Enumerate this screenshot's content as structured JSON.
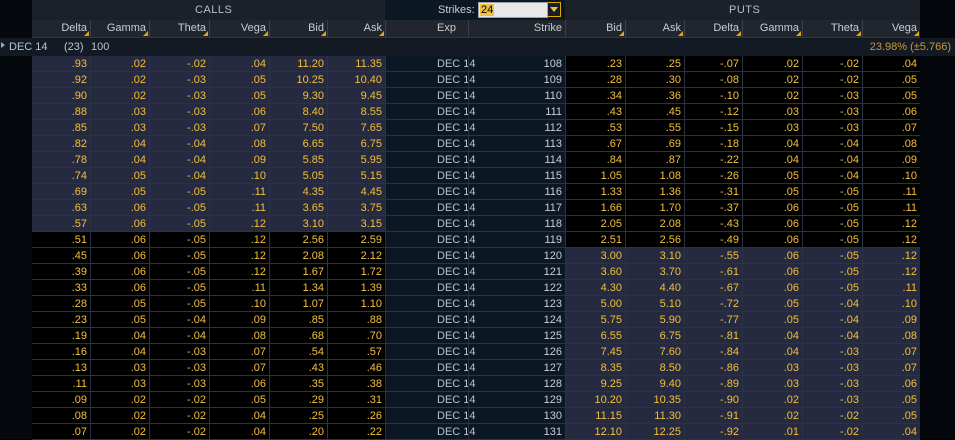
{
  "header": {
    "calls_label": "CALLS",
    "puts_label": "PUTS",
    "strikes_label": "Strikes:",
    "strikes_value": "24"
  },
  "columns": {
    "calls": [
      "Delta",
      "Gamma",
      "Theta",
      "Vega",
      "Bid",
      "Ask"
    ],
    "middle": [
      "Exp",
      "Strike"
    ],
    "puts": [
      "Bid",
      "Ask",
      "Delta",
      "Gamma",
      "Theta",
      "Vega"
    ]
  },
  "group": {
    "expiry": "DEC 14",
    "days": "(23)",
    "multiplier": "100",
    "iv": "23.98% (±5.766)"
  },
  "colors": {
    "value_text": "#f0c040",
    "itm_call_bg": "#262a40",
    "itm_put_bg": "#262a40",
    "otm_bg": "#000000",
    "middle_bg": "#0c1724",
    "header_bg": "#1b2029"
  },
  "rows": [
    {
      "c_delta": ".93",
      "c_gamma": ".02",
      "c_theta": "-.02",
      "c_vega": ".04",
      "c_bid": "11.20",
      "c_ask": "11.35",
      "exp": "DEC 14",
      "strike": "108",
      "p_bid": ".23",
      "p_ask": ".25",
      "p_delta": "-.07",
      "p_gamma": ".02",
      "p_theta": "-.02",
      "p_vega": ".04"
    },
    {
      "c_delta": ".92",
      "c_gamma": ".02",
      "c_theta": "-.03",
      "c_vega": ".05",
      "c_bid": "10.25",
      "c_ask": "10.40",
      "exp": "DEC 14",
      "strike": "109",
      "p_bid": ".28",
      "p_ask": ".30",
      "p_delta": "-.08",
      "p_gamma": ".02",
      "p_theta": "-.02",
      "p_vega": ".05"
    },
    {
      "c_delta": ".90",
      "c_gamma": ".02",
      "c_theta": "-.03",
      "c_vega": ".05",
      "c_bid": "9.30",
      "c_ask": "9.45",
      "exp": "DEC 14",
      "strike": "110",
      "p_bid": ".34",
      "p_ask": ".36",
      "p_delta": "-.10",
      "p_gamma": ".02",
      "p_theta": "-.03",
      "p_vega": ".05"
    },
    {
      "c_delta": ".88",
      "c_gamma": ".03",
      "c_theta": "-.03",
      "c_vega": ".06",
      "c_bid": "8.40",
      "c_ask": "8.55",
      "exp": "DEC 14",
      "strike": "111",
      "p_bid": ".43",
      "p_ask": ".45",
      "p_delta": "-.12",
      "p_gamma": ".03",
      "p_theta": "-.03",
      "p_vega": ".06"
    },
    {
      "c_delta": ".85",
      "c_gamma": ".03",
      "c_theta": "-.03",
      "c_vega": ".07",
      "c_bid": "7.50",
      "c_ask": "7.65",
      "exp": "DEC 14",
      "strike": "112",
      "p_bid": ".53",
      "p_ask": ".55",
      "p_delta": "-.15",
      "p_gamma": ".03",
      "p_theta": "-.03",
      "p_vega": ".07"
    },
    {
      "c_delta": ".82",
      "c_gamma": ".04",
      "c_theta": "-.04",
      "c_vega": ".08",
      "c_bid": "6.65",
      "c_ask": "6.75",
      "exp": "DEC 14",
      "strike": "113",
      "p_bid": ".67",
      "p_ask": ".69",
      "p_delta": "-.18",
      "p_gamma": ".04",
      "p_theta": "-.04",
      "p_vega": ".08"
    },
    {
      "c_delta": ".78",
      "c_gamma": ".04",
      "c_theta": "-.04",
      "c_vega": ".09",
      "c_bid": "5.85",
      "c_ask": "5.95",
      "exp": "DEC 14",
      "strike": "114",
      "p_bid": ".84",
      "p_ask": ".87",
      "p_delta": "-.22",
      "p_gamma": ".04",
      "p_theta": "-.04",
      "p_vega": ".09"
    },
    {
      "c_delta": ".74",
      "c_gamma": ".05",
      "c_theta": "-.04",
      "c_vega": ".10",
      "c_bid": "5.05",
      "c_ask": "5.15",
      "exp": "DEC 14",
      "strike": "115",
      "p_bid": "1.05",
      "p_ask": "1.08",
      "p_delta": "-.26",
      "p_gamma": ".05",
      "p_theta": "-.04",
      "p_vega": ".10"
    },
    {
      "c_delta": ".69",
      "c_gamma": ".05",
      "c_theta": "-.05",
      "c_vega": ".11",
      "c_bid": "4.35",
      "c_ask": "4.45",
      "exp": "DEC 14",
      "strike": "116",
      "p_bid": "1.33",
      "p_ask": "1.36",
      "p_delta": "-.31",
      "p_gamma": ".05",
      "p_theta": "-.05",
      "p_vega": ".11"
    },
    {
      "c_delta": ".63",
      "c_gamma": ".06",
      "c_theta": "-.05",
      "c_vega": ".11",
      "c_bid": "3.65",
      "c_ask": "3.75",
      "exp": "DEC 14",
      "strike": "117",
      "p_bid": "1.66",
      "p_ask": "1.70",
      "p_delta": "-.37",
      "p_gamma": ".06",
      "p_theta": "-.05",
      "p_vega": ".11"
    },
    {
      "c_delta": ".57",
      "c_gamma": ".06",
      "c_theta": "-.05",
      "c_vega": ".12",
      "c_bid": "3.10",
      "c_ask": "3.15",
      "exp": "DEC 14",
      "strike": "118",
      "p_bid": "2.05",
      "p_ask": "2.08",
      "p_delta": "-.43",
      "p_gamma": ".06",
      "p_theta": "-.05",
      "p_vega": ".12"
    },
    {
      "c_delta": ".51",
      "c_gamma": ".06",
      "c_theta": "-.05",
      "c_vega": ".12",
      "c_bid": "2.56",
      "c_ask": "2.59",
      "exp": "DEC 14",
      "strike": "119",
      "p_bid": "2.51",
      "p_ask": "2.56",
      "p_delta": "-.49",
      "p_gamma": ".06",
      "p_theta": "-.05",
      "p_vega": ".12"
    },
    {
      "c_delta": ".45",
      "c_gamma": ".06",
      "c_theta": "-.05",
      "c_vega": ".12",
      "c_bid": "2.08",
      "c_ask": "2.12",
      "exp": "DEC 14",
      "strike": "120",
      "p_bid": "3.00",
      "p_ask": "3.10",
      "p_delta": "-.55",
      "p_gamma": ".06",
      "p_theta": "-.05",
      "p_vega": ".12"
    },
    {
      "c_delta": ".39",
      "c_gamma": ".06",
      "c_theta": "-.05",
      "c_vega": ".12",
      "c_bid": "1.67",
      "c_ask": "1.72",
      "exp": "DEC 14",
      "strike": "121",
      "p_bid": "3.60",
      "p_ask": "3.70",
      "p_delta": "-.61",
      "p_gamma": ".06",
      "p_theta": "-.05",
      "p_vega": ".12"
    },
    {
      "c_delta": ".33",
      "c_gamma": ".06",
      "c_theta": "-.05",
      "c_vega": ".11",
      "c_bid": "1.34",
      "c_ask": "1.39",
      "exp": "DEC 14",
      "strike": "122",
      "p_bid": "4.30",
      "p_ask": "4.40",
      "p_delta": "-.67",
      "p_gamma": ".06",
      "p_theta": "-.05",
      "p_vega": ".11"
    },
    {
      "c_delta": ".28",
      "c_gamma": ".05",
      "c_theta": "-.05",
      "c_vega": ".10",
      "c_bid": "1.07",
      "c_ask": "1.10",
      "exp": "DEC 14",
      "strike": "123",
      "p_bid": "5.00",
      "p_ask": "5.10",
      "p_delta": "-.72",
      "p_gamma": ".05",
      "p_theta": "-.04",
      "p_vega": ".10"
    },
    {
      "c_delta": ".23",
      "c_gamma": ".05",
      "c_theta": "-.04",
      "c_vega": ".09",
      "c_bid": ".85",
      "c_ask": ".88",
      "exp": "DEC 14",
      "strike": "124",
      "p_bid": "5.75",
      "p_ask": "5.90",
      "p_delta": "-.77",
      "p_gamma": ".05",
      "p_theta": "-.04",
      "p_vega": ".09"
    },
    {
      "c_delta": ".19",
      "c_gamma": ".04",
      "c_theta": "-.04",
      "c_vega": ".08",
      "c_bid": ".68",
      "c_ask": ".70",
      "exp": "DEC 14",
      "strike": "125",
      "p_bid": "6.55",
      "p_ask": "6.75",
      "p_delta": "-.81",
      "p_gamma": ".04",
      "p_theta": "-.04",
      "p_vega": ".08"
    },
    {
      "c_delta": ".16",
      "c_gamma": ".04",
      "c_theta": "-.03",
      "c_vega": ".07",
      "c_bid": ".54",
      "c_ask": ".57",
      "exp": "DEC 14",
      "strike": "126",
      "p_bid": "7.45",
      "p_ask": "7.60",
      "p_delta": "-.84",
      "p_gamma": ".04",
      "p_theta": "-.03",
      "p_vega": ".07"
    },
    {
      "c_delta": ".13",
      "c_gamma": ".03",
      "c_theta": "-.03",
      "c_vega": ".07",
      "c_bid": ".43",
      "c_ask": ".46",
      "exp": "DEC 14",
      "strike": "127",
      "p_bid": "8.35",
      "p_ask": "8.50",
      "p_delta": "-.86",
      "p_gamma": ".03",
      "p_theta": "-.03",
      "p_vega": ".07"
    },
    {
      "c_delta": ".11",
      "c_gamma": ".03",
      "c_theta": "-.03",
      "c_vega": ".06",
      "c_bid": ".35",
      "c_ask": ".38",
      "exp": "DEC 14",
      "strike": "128",
      "p_bid": "9.25",
      "p_ask": "9.40",
      "p_delta": "-.89",
      "p_gamma": ".03",
      "p_theta": "-.03",
      "p_vega": ".06"
    },
    {
      "c_delta": ".09",
      "c_gamma": ".02",
      "c_theta": "-.02",
      "c_vega": ".05",
      "c_bid": ".29",
      "c_ask": ".31",
      "exp": "DEC 14",
      "strike": "129",
      "p_bid": "10.20",
      "p_ask": "10.35",
      "p_delta": "-.90",
      "p_gamma": ".02",
      "p_theta": "-.03",
      "p_vega": ".05"
    },
    {
      "c_delta": ".08",
      "c_gamma": ".02",
      "c_theta": "-.02",
      "c_vega": ".04",
      "c_bid": ".25",
      "c_ask": ".26",
      "exp": "DEC 14",
      "strike": "130",
      "p_bid": "11.15",
      "p_ask": "11.30",
      "p_delta": "-.91",
      "p_gamma": ".02",
      "p_theta": "-.02",
      "p_vega": ".05"
    },
    {
      "c_delta": ".07",
      "c_gamma": ".02",
      "c_theta": "-.02",
      "c_vega": ".04",
      "c_bid": ".20",
      "c_ask": ".22",
      "exp": "DEC 14",
      "strike": "131",
      "p_bid": "12.10",
      "p_ask": "12.25",
      "p_delta": "-.92",
      "p_gamma": ".01",
      "p_theta": "-.02",
      "p_vega": ".04"
    }
  ]
}
